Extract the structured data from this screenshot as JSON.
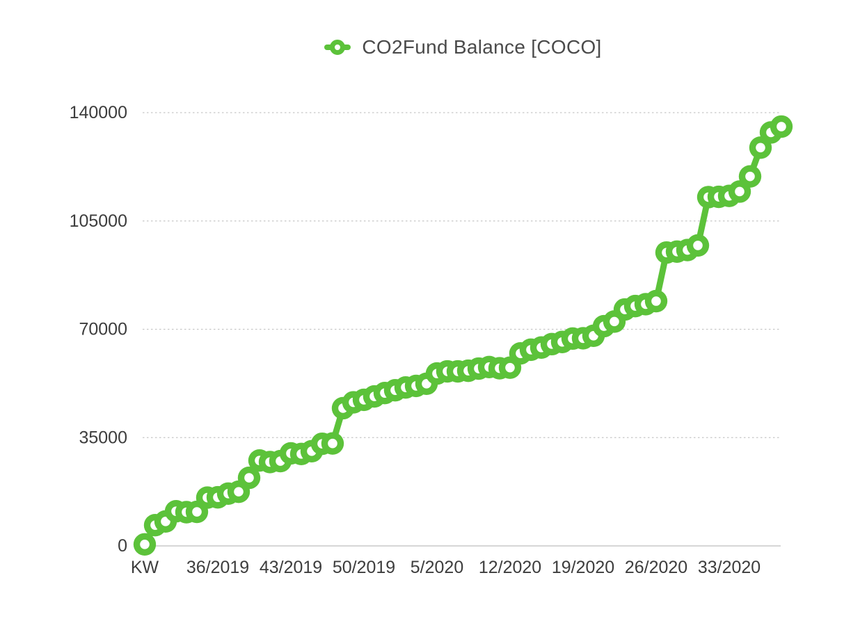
{
  "legend": {
    "label": "CO2Fund Balance [COCO]"
  },
  "chart_data": {
    "type": "line",
    "title": "CO2Fund Balance [COCO]",
    "legend_position": "top-center",
    "grid": {
      "horizontal": true,
      "style": "dotted",
      "color": "#c6c6c6",
      "baseline_color": "#c9c9c9"
    },
    "text_color": "#3d3d3d",
    "x_axis": {
      "unit_label": "KW",
      "tick_labels": [
        "KW",
        "36/2019",
        "43/2019",
        "50/2019",
        "5/2020",
        "12/2020",
        "19/2020",
        "26/2020",
        "33/2020"
      ],
      "tick_indices": [
        0,
        7,
        14,
        21,
        28,
        35,
        42,
        49,
        56
      ],
      "points_per_tick": 7
    },
    "y_axis": {
      "ticks": [
        0,
        35000,
        70000,
        105000,
        140000
      ],
      "tick_labels": [
        "0",
        "35000",
        "70000",
        "105000",
        "140000"
      ],
      "range": [
        0,
        140000
      ]
    },
    "series": [
      {
        "name": "CO2Fund Balance [COCO]",
        "color": "#5cc23a",
        "marker": "donut-circle",
        "values": [
          500,
          6700,
          7900,
          11200,
          10900,
          11000,
          15600,
          15700,
          16900,
          17500,
          22000,
          27600,
          27100,
          27400,
          29900,
          29700,
          30600,
          33000,
          33100,
          44500,
          46400,
          47200,
          48300,
          49400,
          50300,
          51200,
          51700,
          52400,
          55700,
          56400,
          56400,
          56600,
          57300,
          57800,
          57400,
          57600,
          62200,
          63400,
          64100,
          65200,
          65900,
          67000,
          67100,
          67900,
          71000,
          72500,
          76400,
          77500,
          78100,
          79100,
          94800,
          95100,
          95600,
          97100,
          112700,
          112800,
          113100,
          114500,
          119400,
          128700,
          133600,
          135500
        ]
      }
    ]
  }
}
